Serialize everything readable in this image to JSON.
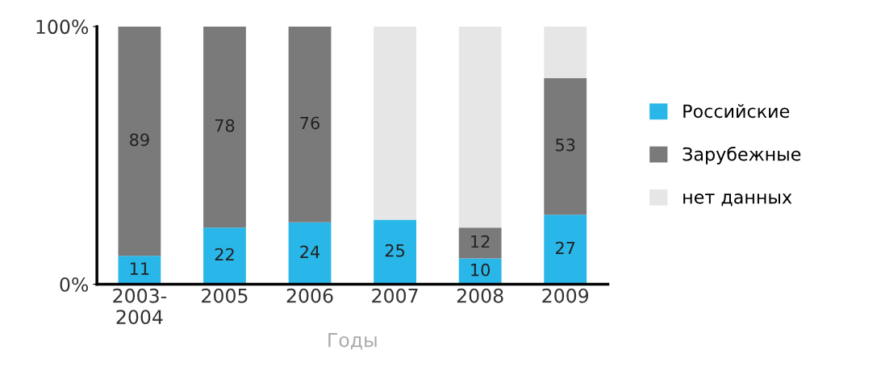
{
  "chart_data": {
    "type": "bar",
    "stacked": true,
    "xlabel": "Годы",
    "categories": [
      "2003-\n2004",
      "2005",
      "2006",
      "2007",
      "2008",
      "2009"
    ],
    "series": [
      {
        "name": "Российские",
        "color": "#29b6e8",
        "values": [
          11,
          22,
          24,
          25,
          10,
          27
        ],
        "value_labels": [
          "11",
          "22",
          "24",
          "25",
          "10",
          "27"
        ]
      },
      {
        "name": "Зарубежные",
        "color": "#7a7a7a",
        "values": [
          89,
          78,
          76,
          null,
          12,
          53
        ],
        "value_labels": [
          "89",
          "78",
          "76",
          null,
          "12",
          "53"
        ]
      },
      {
        "name": "нет данных",
        "color": "#e6e6e6",
        "values": [
          null,
          null,
          null,
          75,
          78,
          20
        ],
        "value_labels": [
          null,
          null,
          null,
          null,
          null,
          null
        ]
      }
    ],
    "ylim": [
      0,
      100
    ],
    "yticks": [
      {
        "value": 0,
        "label": "0%"
      },
      {
        "value": 100,
        "label": "100%"
      }
    ],
    "grid": false,
    "legend": "right"
  }
}
